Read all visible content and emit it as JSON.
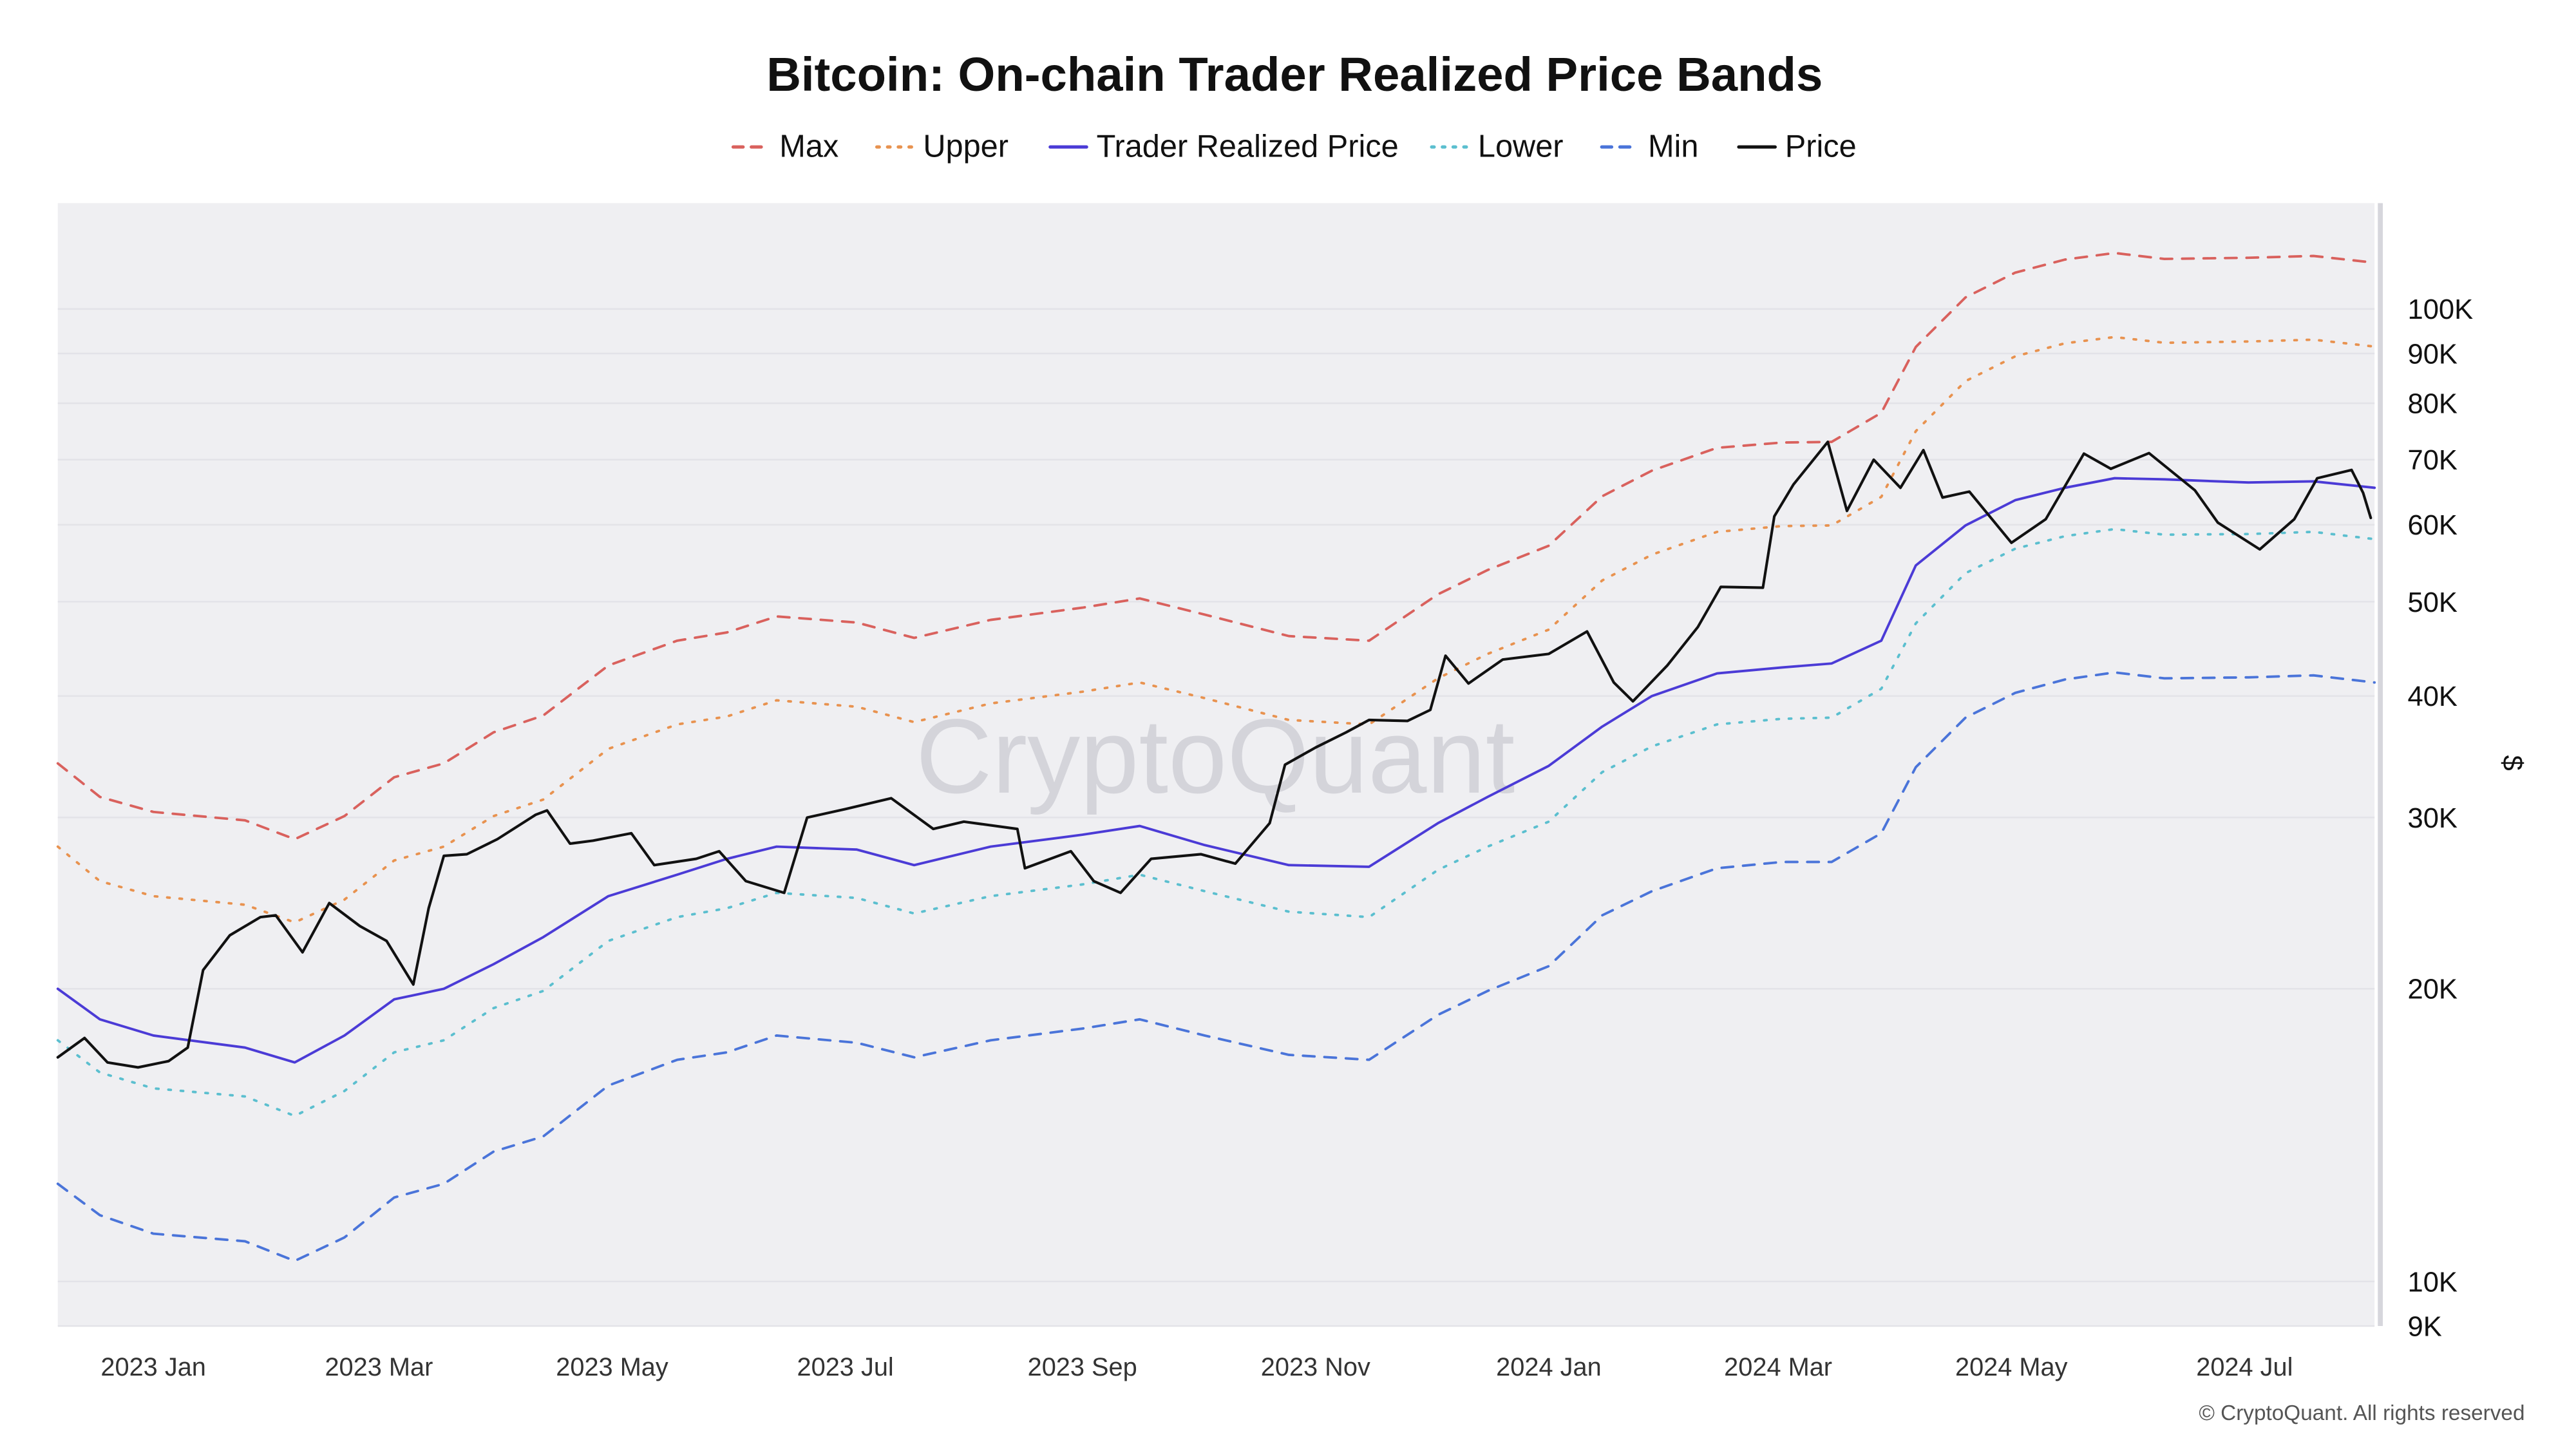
{
  "chart_data": {
    "type": "line",
    "title": "Bitcoin: On-chain Trader Realized Price Bands",
    "ylabel": "$",
    "xlabel": "",
    "y_scale": "log",
    "ylim": [
      9000,
      128500
    ],
    "xlim": [
      "2022-12-07",
      "2024-08-04"
    ],
    "grid": true,
    "legend_position": "top-center",
    "y_ticks": [
      {
        "value": 9000,
        "label": "9K"
      },
      {
        "value": 10000,
        "label": "10K"
      },
      {
        "value": 20000,
        "label": "20K"
      },
      {
        "value": 30000,
        "label": "30K"
      },
      {
        "value": 40000,
        "label": "40K"
      },
      {
        "value": 50000,
        "label": "50K"
      },
      {
        "value": 60000,
        "label": "60K"
      },
      {
        "value": 70000,
        "label": "70K"
      },
      {
        "value": 80000,
        "label": "80K"
      },
      {
        "value": 90000,
        "label": "90K"
      },
      {
        "value": 100000,
        "label": "100K"
      }
    ],
    "x_ticks": [
      {
        "date": "2023-01-01",
        "label": "2023 Jan"
      },
      {
        "date": "2023-03-01",
        "label": "2023 Mar"
      },
      {
        "date": "2023-05-01",
        "label": "2023 May"
      },
      {
        "date": "2023-07-01",
        "label": "2023 Jul"
      },
      {
        "date": "2023-09-01",
        "label": "2023 Sep"
      },
      {
        "date": "2023-11-01",
        "label": "2023 Nov"
      },
      {
        "date": "2024-01-01",
        "label": "2024 Jan"
      },
      {
        "date": "2024-03-01",
        "label": "2024 Mar"
      },
      {
        "date": "2024-05-01",
        "label": "2024 May"
      },
      {
        "date": "2024-07-01",
        "label": "2024 Jul"
      }
    ],
    "band_dates": [
      "2022-12-07",
      "2022-12-18",
      "2023-01-01",
      "2023-01-25",
      "2023-02-07",
      "2023-02-20",
      "2023-03-05",
      "2023-03-18",
      "2023-03-31",
      "2023-04-13",
      "2023-04-30",
      "2023-05-18",
      "2023-05-31",
      "2023-06-13",
      "2023-07-04",
      "2023-07-19",
      "2023-08-08",
      "2023-09-01",
      "2023-09-16",
      "2023-10-03",
      "2023-10-25",
      "2023-11-15",
      "2023-12-03",
      "2023-12-16",
      "2024-01-01",
      "2024-01-15",
      "2024-01-28",
      "2024-02-14",
      "2024-03-02",
      "2024-03-15",
      "2024-03-28",
      "2024-04-06",
      "2024-04-19",
      "2024-05-02",
      "2024-05-15",
      "2024-05-28",
      "2024-06-10",
      "2024-07-02",
      "2024-07-19",
      "2024-08-04"
    ],
    "series": [
      {
        "name": "Max",
        "color": "#d9615d",
        "dash": "dashed",
        "values": [
          34100,
          31500,
          30400,
          29800,
          28500,
          30100,
          33000,
          34100,
          36700,
          38200,
          43000,
          45600,
          46500,
          48300,
          47600,
          45900,
          47900,
          49300,
          50400,
          48500,
          46100,
          45600,
          50900,
          53900,
          57100,
          64200,
          68200,
          72000,
          72900,
          73000,
          78200,
          91400,
          102800,
          109000,
          112400,
          114200,
          112600,
          112900,
          113400,
          111600
        ]
      },
      {
        "name": "Upper",
        "color": "#e8924f",
        "dash": "dotted",
        "values": [
          28000,
          25800,
          24900,
          24400,
          23400,
          24700,
          27100,
          28000,
          30100,
          31300,
          35300,
          37400,
          38100,
          39600,
          39000,
          37600,
          39300,
          40400,
          41300,
          39800,
          37800,
          37400,
          41700,
          44200,
          46800,
          52600,
          55900,
          59000,
          59800,
          59900,
          64100,
          74900,
          84300,
          89400,
          92200,
          93600,
          92300,
          92600,
          93000,
          91500
        ]
      },
      {
        "name": "Trader Realized Price",
        "color": "#4b3bd6",
        "dash": "solid",
        "values": [
          20000,
          18600,
          17900,
          17400,
          16800,
          17900,
          19500,
          20000,
          21200,
          22600,
          24900,
          26200,
          27200,
          28000,
          27800,
          26800,
          28000,
          28800,
          29400,
          28100,
          26800,
          26700,
          29600,
          31500,
          33900,
          37200,
          40000,
          42200,
          42800,
          43200,
          45600,
          54500,
          59900,
          63600,
          65500,
          67000,
          66800,
          66300,
          66500,
          65500
        ]
      },
      {
        "name": "Lower",
        "color": "#5bbfcf",
        "dash": "dotted",
        "values": [
          17700,
          16400,
          15800,
          15500,
          14800,
          15700,
          17200,
          17700,
          19100,
          19900,
          22400,
          23700,
          24200,
          25100,
          24800,
          23900,
          24900,
          25600,
          26200,
          25200,
          24000,
          23700,
          26500,
          28000,
          29700,
          33400,
          35500,
          37400,
          37900,
          38000,
          40700,
          47500,
          53500,
          56700,
          58400,
          59400,
          58600,
          58700,
          59000,
          58000
        ]
      },
      {
        "name": "Min",
        "color": "#4a74d9",
        "dash": "dashed",
        "values": [
          12600,
          11700,
          11200,
          11000,
          10500,
          11100,
          12200,
          12600,
          13600,
          14100,
          15900,
          16900,
          17200,
          17900,
          17600,
          17000,
          17700,
          18200,
          18600,
          17900,
          17100,
          16900,
          18800,
          19900,
          21100,
          23800,
          25200,
          26600,
          27000,
          27000,
          28900,
          33800,
          38000,
          40300,
          41600,
          42300,
          41700,
          41800,
          42000,
          41300
        ]
      },
      {
        "name": "Price",
        "color": "#111111",
        "dash": "solid",
        "dates": [
          "2022-12-07",
          "2022-12-14",
          "2022-12-20",
          "2022-12-28",
          "2023-01-05",
          "2023-01-10",
          "2023-01-14",
          "2023-01-21",
          "2023-01-29",
          "2023-02-02",
          "2023-02-09",
          "2023-02-16",
          "2023-02-24",
          "2023-03-03",
          "2023-03-10",
          "2023-03-14",
          "2023-03-18",
          "2023-03-24",
          "2023-04-01",
          "2023-04-11",
          "2023-04-14",
          "2023-04-20",
          "2023-04-26",
          "2023-05-06",
          "2023-05-12",
          "2023-05-23",
          "2023-05-29",
          "2023-06-05",
          "2023-06-15",
          "2023-06-21",
          "2023-07-01",
          "2023-07-13",
          "2023-07-24",
          "2023-08-01",
          "2023-08-15",
          "2023-08-17",
          "2023-08-29",
          "2023-09-04",
          "2023-09-11",
          "2023-09-19",
          "2023-10-02",
          "2023-10-11",
          "2023-10-20",
          "2023-10-24",
          "2023-11-01",
          "2023-11-09",
          "2023-11-15",
          "2023-11-25",
          "2023-12-01",
          "2023-12-05",
          "2023-12-11",
          "2023-12-20",
          "2024-01-01",
          "2024-01-11",
          "2024-01-18",
          "2024-01-23",
          "2024-02-01",
          "2024-02-09",
          "2024-02-15",
          "2024-02-26",
          "2024-02-29",
          "2024-03-05",
          "2024-03-14",
          "2024-03-19",
          "2024-03-26",
          "2024-04-02",
          "2024-04-08",
          "2024-04-13",
          "2024-04-20",
          "2024-05-01",
          "2024-05-10",
          "2024-05-20",
          "2024-05-27",
          "2024-06-06",
          "2024-06-18",
          "2024-06-24",
          "2024-07-05",
          "2024-07-14",
          "2024-07-20",
          "2024-07-29",
          "2024-08-01",
          "2024-08-03"
        ],
        "values": [
          17000,
          17800,
          16800,
          16600,
          16850,
          17400,
          20900,
          22700,
          23700,
          23800,
          21800,
          24500,
          23200,
          22400,
          20200,
          24200,
          27400,
          27500,
          28500,
          30200,
          30500,
          28200,
          28400,
          28900,
          26800,
          27200,
          27700,
          25800,
          25100,
          30000,
          30600,
          31400,
          29200,
          29700,
          29200,
          26600,
          27700,
          25800,
          25100,
          27200,
          27500,
          26900,
          29600,
          34000,
          35400,
          36700,
          37800,
          37700,
          38700,
          44000,
          41200,
          43600,
          44200,
          46600,
          41300,
          39500,
          43000,
          47100,
          51800,
          51700,
          61200,
          66000,
          73000,
          62000,
          70000,
          65500,
          71600,
          64000,
          64900,
          57500,
          60800,
          71000,
          68500,
          71100,
          65100,
          60300,
          56600,
          60800,
          67000,
          68300,
          64700,
          61000
        ]
      }
    ]
  },
  "watermark": "CryptoQuant",
  "footer": "© CryptoQuant. All rights reserved"
}
